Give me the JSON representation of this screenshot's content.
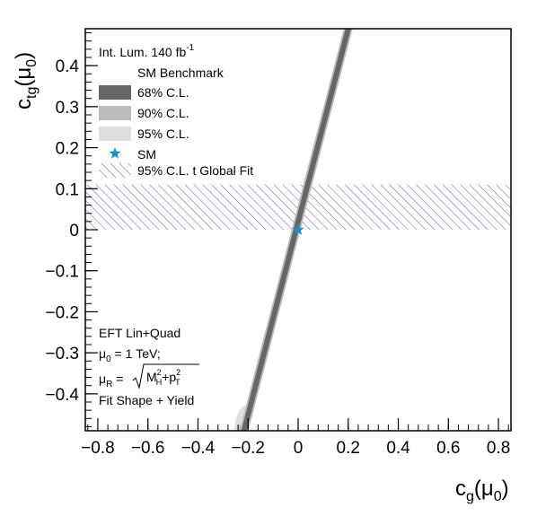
{
  "chart_data": {
    "type": "area",
    "xlabel_main": "c",
    "xlabel_sub": "g",
    "xlabel_arg": "(μ",
    "xlabel_arg_sub": "0",
    "xlabel_close": ")",
    "ylabel_main": "c",
    "ylabel_sub": "tg",
    "ylabel_arg": "(μ",
    "ylabel_arg_sub": "0",
    "ylabel_close": ")",
    "xlim": [
      -0.85,
      0.85
    ],
    "ylim": [
      -0.49,
      0.49
    ],
    "x_ticks": [
      -0.8,
      -0.6,
      -0.4,
      -0.2,
      0,
      0.2,
      0.4,
      0.6,
      0.8
    ],
    "x_tick_labels": [
      "−0.8",
      "−0.6",
      "−0.4",
      "−0.2",
      "0",
      "0.2",
      "0.4",
      "0.6",
      "0.8"
    ],
    "y_ticks": [
      -0.4,
      -0.3,
      -0.2,
      -0.1,
      0,
      0.1,
      0.2,
      0.3,
      0.4
    ],
    "y_tick_labels": [
      "−0.4",
      "−0.3",
      "−0.2",
      "−0.1",
      "0",
      "0.1",
      "0.2",
      "0.3",
      "0.4"
    ],
    "lumi_text": "Int. Lum. 140 fb",
    "lumi_sup": "-1",
    "legend": {
      "header": "SM Benchmark",
      "entries": [
        {
          "label": "68% C.L.",
          "color": "#666666"
        },
        {
          "label": "90% C.L.",
          "color": "#bbbbbb"
        },
        {
          "label": "95% C.L.",
          "color": "#e0e0e0"
        },
        {
          "label": "SM",
          "color": "#1a8fc9"
        },
        {
          "label": "95% C.L. t Global Fit",
          "color": "#5a5fa8"
        }
      ]
    },
    "band_68": {
      "x_bottom": -0.22,
      "y_bottom": -0.49,
      "x_top": 0.2,
      "y_top": 0.49
    },
    "band_90_bottom_extension": {
      "x": -0.245,
      "y": -0.47
    },
    "band_95_bottom_extension": {
      "x": -0.255,
      "y": -0.43
    },
    "sm_point": {
      "x": 0,
      "y": 0
    },
    "global_fit_band": {
      "y_min": 0.0,
      "y_max": 0.11
    },
    "annotation": {
      "line1": "EFT Lin+Quad",
      "line2_pre": "μ",
      "line2_sub": "0",
      "line2_post": " = 1 TeV;",
      "line3_pre": "μ",
      "line3_sub": "R",
      "line3_eq": " = ",
      "line3_m": "M",
      "line3_m_sup": "2",
      "line3_m_sub": "H",
      "line3_plus": "+p",
      "line3_p_sup": "2",
      "line3_p_sub": "T",
      "line4": "Fit Shape + Yield"
    }
  }
}
